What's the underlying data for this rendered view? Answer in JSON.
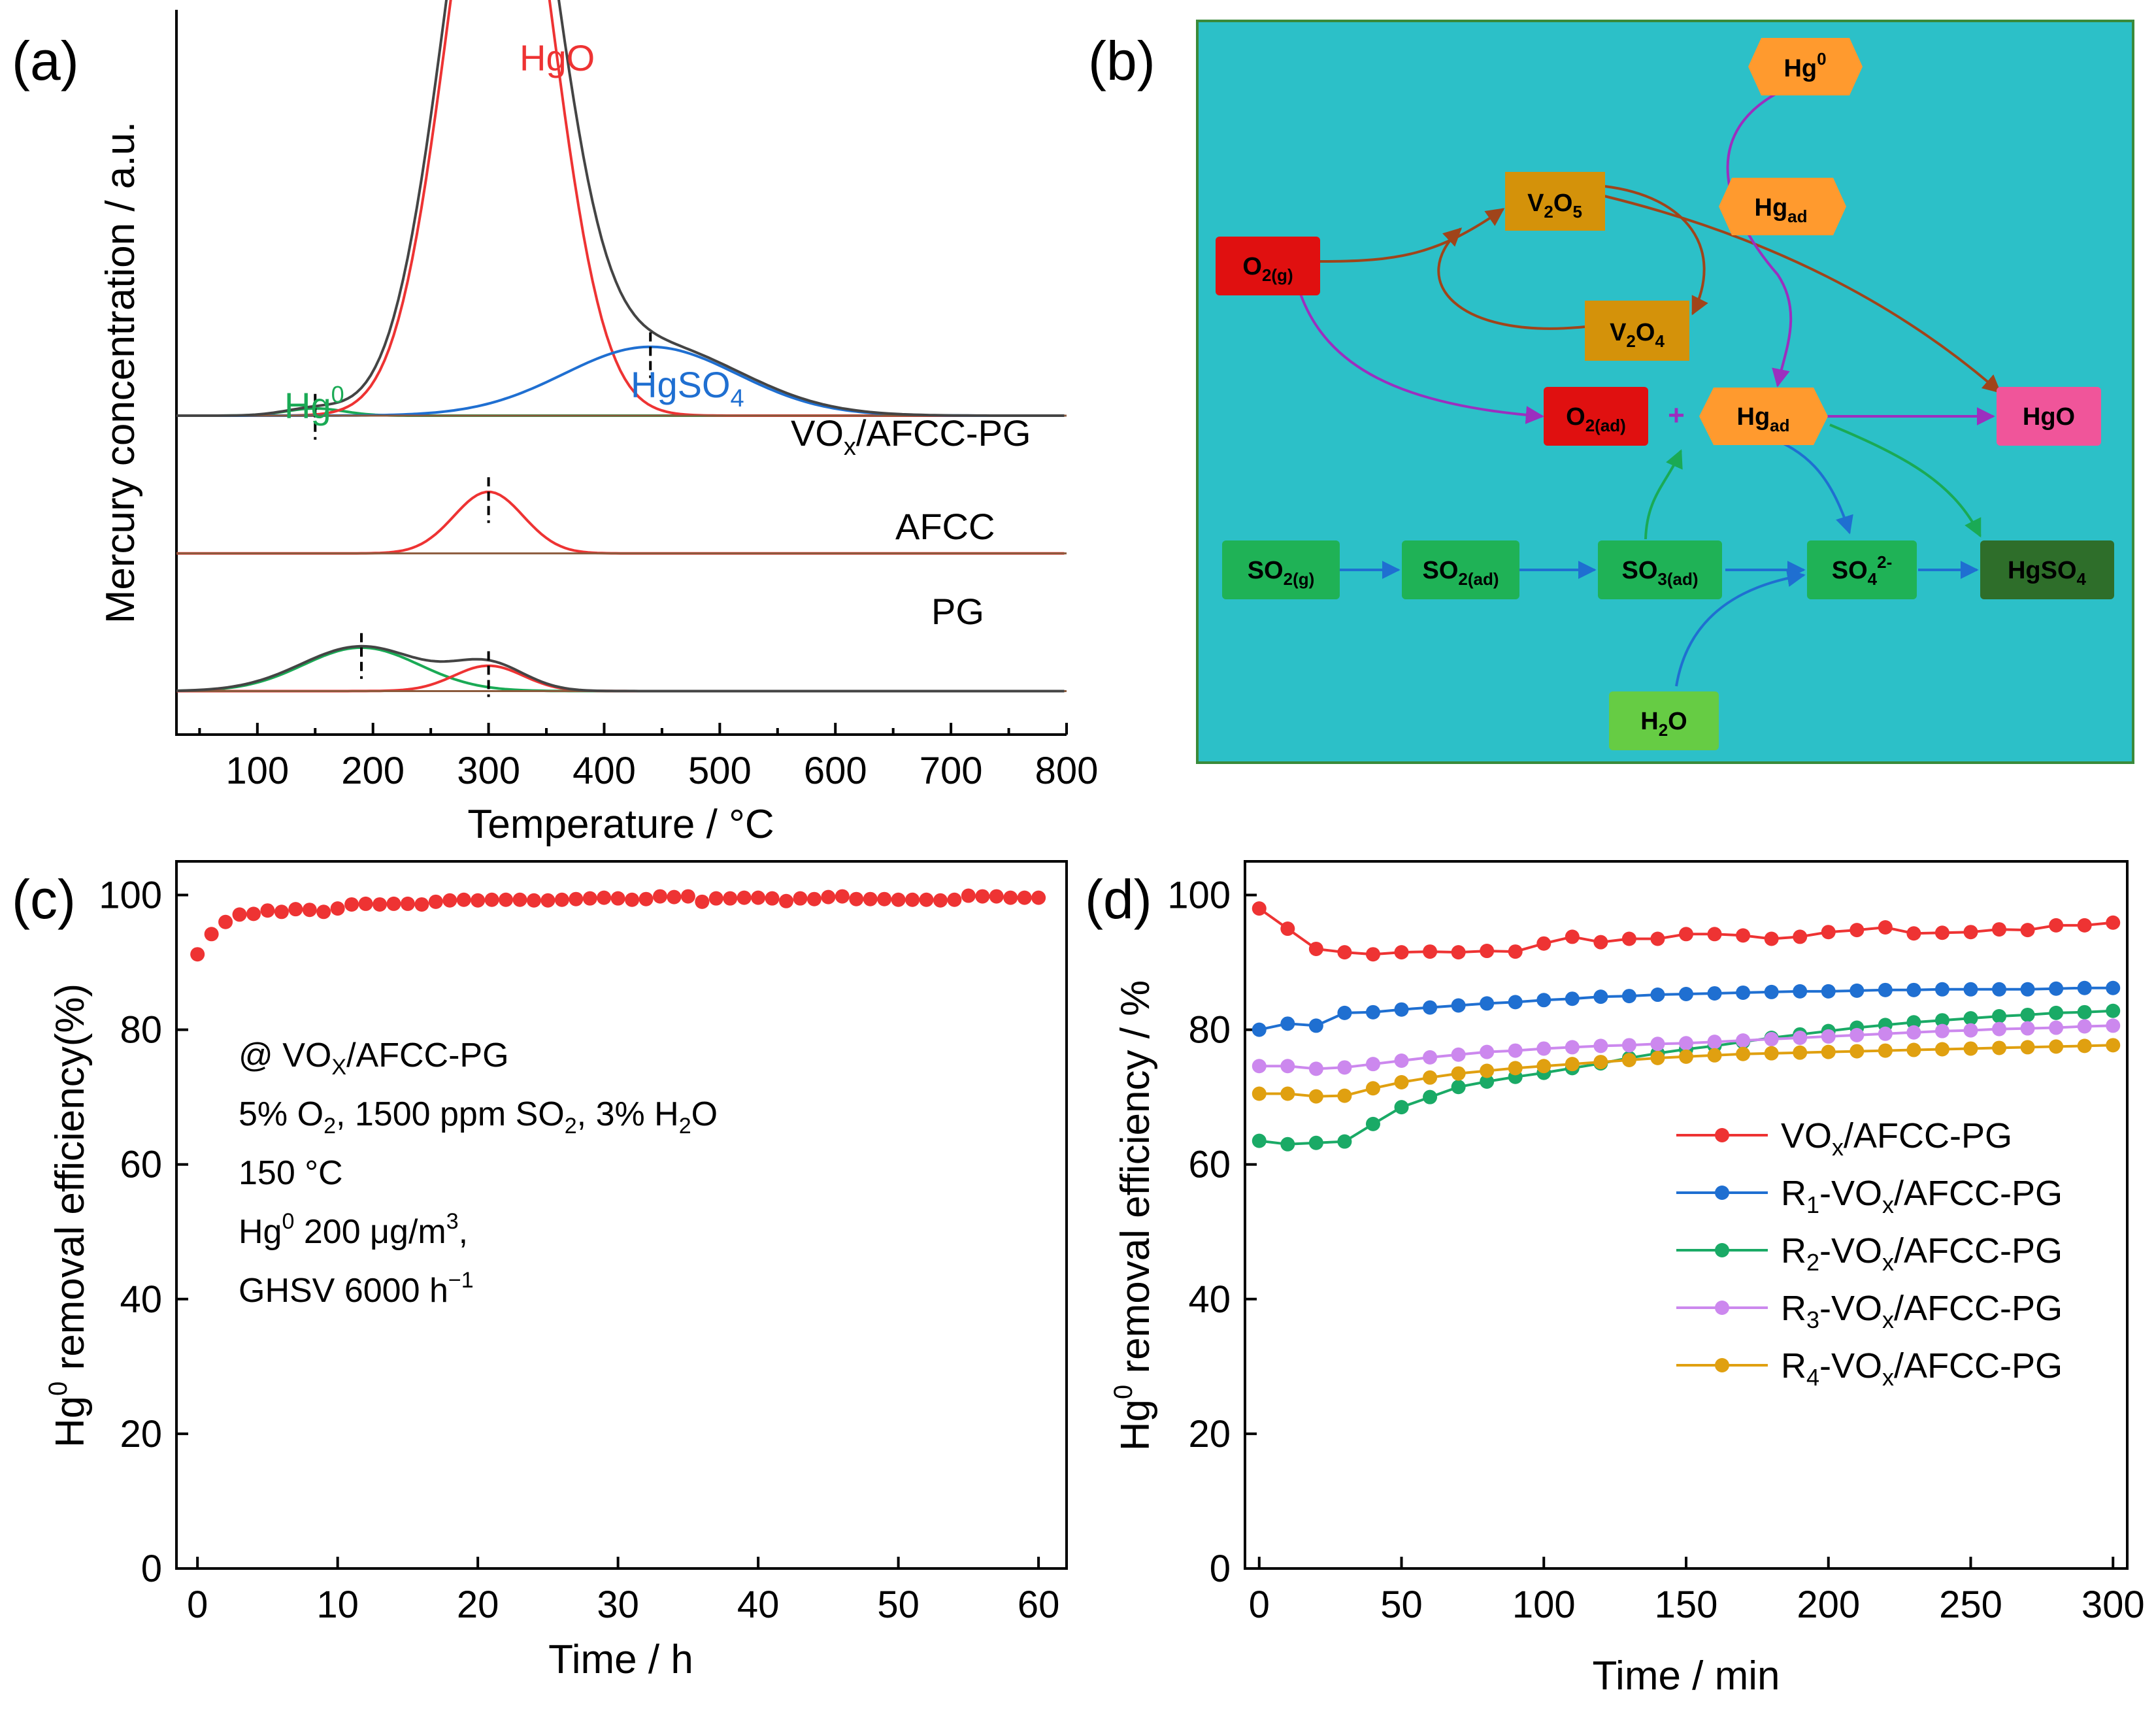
{
  "panels": {
    "a": "(a)",
    "b": "(b)",
    "c": "(c)",
    "d": "(d)"
  },
  "chart_data": [
    {
      "id": "a",
      "type": "line",
      "title": "",
      "xlabel": "Temperature / °C",
      "ylabel": "Mercury concentration / a.u.",
      "xlim": [
        30,
        800
      ],
      "xticks": [
        100,
        200,
        300,
        400,
        500,
        600,
        700,
        800
      ],
      "xtick_labels": [
        "100",
        "200",
        "300",
        "400",
        "500",
        "600",
        "700",
        "800"
      ],
      "traces": [
        {
          "label": "VOx/AFCC-PG",
          "label_main": "VO",
          "label_sub": "x",
          "label_tail": "/AFCC-PG",
          "offset": 0.44,
          "peaks": [
            {
              "name": "Hg",
              "name_sup": "0",
              "center": 150,
              "height": 0.01,
              "color": "#1aaa55"
            },
            {
              "name": "HgO",
              "name_sup": "",
              "center": 310,
              "height": 0.9,
              "color": "#ee3333"
            },
            {
              "name": "HgSO",
              "name_sub": "4",
              "center": 440,
              "height": 0.095,
              "color": "#1f6fd1"
            }
          ]
        },
        {
          "label": "AFCC",
          "offset": 0.25,
          "peaks": [
            {
              "name": "",
              "center": 300,
              "height": 0.085,
              "color": "#ee3333"
            }
          ]
        },
        {
          "label": "PG",
          "offset": 0.06,
          "peaks": [
            {
              "name": "",
              "center": 190,
              "height": 0.06,
              "color": "#1aaa55"
            },
            {
              "name": "",
              "center": 300,
              "height": 0.035,
              "color": "#ee3333"
            }
          ]
        }
      ]
    },
    {
      "id": "c",
      "type": "scatter",
      "xlabel": "Time / h",
      "ylabel_main": "Hg",
      "ylabel_sup": "0",
      "ylabel_tail": " removal efficiency(%)",
      "xlim": [
        -1.5,
        62
      ],
      "ylim": [
        0,
        105
      ],
      "xticks": [
        0,
        10,
        20,
        30,
        40,
        50,
        60
      ],
      "yticks": [
        0,
        20,
        40,
        60,
        80,
        100
      ],
      "color": "#ee3333",
      "x": [
        0,
        1,
        2,
        3,
        4,
        5,
        6,
        7,
        8,
        9,
        10,
        11,
        12,
        13,
        14,
        15,
        16,
        17,
        18,
        19,
        20,
        21,
        22,
        23,
        24,
        25,
        26,
        27,
        28,
        29,
        30,
        31,
        32,
        33,
        34,
        35,
        36,
        37,
        38,
        39,
        40,
        41,
        42,
        43,
        44,
        45,
        46,
        47,
        48,
        49,
        50,
        51,
        52,
        53,
        54,
        55,
        56,
        57,
        58,
        59,
        60
      ],
      "y": [
        91.2,
        94.2,
        96.0,
        97.1,
        97.2,
        97.7,
        97.5,
        97.9,
        97.8,
        97.5,
        98.0,
        98.6,
        98.7,
        98.6,
        98.7,
        98.7,
        98.6,
        99.0,
        99.2,
        99.3,
        99.2,
        99.3,
        99.3,
        99.3,
        99.2,
        99.2,
        99.3,
        99.4,
        99.5,
        99.6,
        99.5,
        99.3,
        99.4,
        99.8,
        99.7,
        99.8,
        99.0,
        99.5,
        99.5,
        99.6,
        99.6,
        99.5,
        99.1,
        99.5,
        99.4,
        99.7,
        99.8,
        99.4,
        99.4,
        99.4,
        99.3,
        99.3,
        99.3,
        99.2,
        99.3,
        99.9,
        99.8,
        99.8,
        99.6,
        99.6,
        99.6
      ],
      "notes": [
        {
          "main": "@ VO",
          "sub": "X",
          "tail": "/AFCC-PG"
        },
        {
          "main": "5% O",
          "sub": "2",
          "tail": ", 1500 ppm SO",
          "sub2": "2",
          "tail2": ", 3% H",
          "sub3": "2",
          "tail3": "O"
        },
        {
          "main": "150 °C"
        },
        {
          "main": "Hg",
          "sup": "0",
          "tail": " 200 μg/m",
          "sup2": "3",
          "tail2": ","
        },
        {
          "main": "GHSV 6000 h",
          "sup": "−1"
        }
      ]
    },
    {
      "id": "d",
      "type": "line",
      "xlabel": "Time / min",
      "ylabel_main": "Hg",
      "ylabel_sup": "0",
      "ylabel_tail": " removal efficiency / %",
      "xlim": [
        -5,
        305
      ],
      "ylim": [
        0,
        105
      ],
      "xticks": [
        0,
        50,
        100,
        150,
        200,
        250,
        300
      ],
      "yticks": [
        0,
        20,
        40,
        60,
        80,
        100
      ],
      "x": [
        0,
        10,
        20,
        30,
        40,
        50,
        60,
        70,
        80,
        90,
        100,
        110,
        120,
        130,
        140,
        150,
        160,
        170,
        180,
        190,
        200,
        210,
        220,
        230,
        240,
        250,
        260,
        270,
        280,
        290,
        300
      ],
      "series": [
        {
          "name": "VOx/AFCC-PG",
          "lbl_pre": "",
          "lbl_sub1": "",
          "lbl_mid": "VO",
          "lbl_sub2": "x",
          "lbl_tail": "/AFCC-PG",
          "color": "#ee3333",
          "values": [
            98.0,
            95.0,
            92.0,
            91.5,
            91.2,
            91.5,
            91.6,
            91.5,
            91.7,
            91.6,
            92.8,
            93.8,
            93.0,
            93.5,
            93.5,
            94.2,
            94.2,
            94.0,
            93.5,
            93.8,
            94.5,
            94.8,
            95.2,
            94.3,
            94.4,
            94.5,
            94.9,
            94.8,
            95.5,
            95.5,
            95.9
          ]
        },
        {
          "name": "R1-VOx/AFCC-PG",
          "lbl_pre": "R",
          "lbl_sub1": "1",
          "lbl_mid": "-VO",
          "lbl_sub2": "x",
          "lbl_tail": "/AFCC-PG",
          "color": "#1f6fd1",
          "values": [
            80.0,
            80.9,
            80.6,
            82.5,
            82.6,
            83.0,
            83.3,
            83.6,
            83.9,
            84.1,
            84.4,
            84.6,
            84.9,
            85.0,
            85.2,
            85.3,
            85.4,
            85.5,
            85.6,
            85.7,
            85.7,
            85.8,
            85.9,
            85.9,
            86.0,
            86.0,
            86.0,
            86.0,
            86.1,
            86.2,
            86.2
          ]
        },
        {
          "name": "R2-VOx/AFCC-PG",
          "lbl_pre": "R",
          "lbl_sub1": "2",
          "lbl_mid": "-VO",
          "lbl_sub2": "x",
          "lbl_tail": "/AFCC-PG",
          "color": "#1aaa66",
          "values": [
            63.5,
            63.0,
            63.2,
            63.4,
            66.0,
            68.5,
            70.0,
            71.5,
            72.3,
            73.0,
            73.6,
            74.3,
            75.0,
            75.8,
            76.5,
            77.1,
            77.6,
            78.2,
            78.8,
            79.3,
            79.8,
            80.3,
            80.7,
            81.1,
            81.4,
            81.7,
            82.0,
            82.2,
            82.5,
            82.6,
            82.8
          ]
        },
        {
          "name": "R3-VOx/AFCC-PG",
          "lbl_pre": "R",
          "lbl_sub1": "3",
          "lbl_mid": "-VO",
          "lbl_sub2": "x",
          "lbl_tail": "/AFCC-PG",
          "color": "#cc88ee",
          "values": [
            74.6,
            74.6,
            74.2,
            74.4,
            74.9,
            75.4,
            75.9,
            76.3,
            76.7,
            76.9,
            77.2,
            77.4,
            77.6,
            77.7,
            77.9,
            78.0,
            78.2,
            78.4,
            78.6,
            78.8,
            79.0,
            79.2,
            79.4,
            79.6,
            79.8,
            79.9,
            80.1,
            80.2,
            80.3,
            80.5,
            80.6
          ]
        },
        {
          "name": "R4-VOx/AFCC-PG",
          "lbl_pre": "R",
          "lbl_sub1": "4",
          "lbl_mid": "-VO",
          "lbl_sub2": "x",
          "lbl_tail": "/AFCC-PG",
          "color": "#e0a010",
          "values": [
            70.5,
            70.5,
            70.1,
            70.2,
            71.3,
            72.2,
            72.9,
            73.5,
            73.9,
            74.3,
            74.6,
            74.9,
            75.2,
            75.5,
            75.8,
            76.0,
            76.2,
            76.4,
            76.5,
            76.6,
            76.7,
            76.8,
            76.9,
            77.0,
            77.1,
            77.2,
            77.3,
            77.4,
            77.5,
            77.6,
            77.7
          ]
        }
      ]
    }
  ],
  "diagram": {
    "nodes": {
      "hg0": {
        "main": "Hg",
        "sup": "0",
        "color": "#ff9a2e"
      },
      "v2o5": {
        "main": "V",
        "sub": "2",
        "mid": "O",
        "sub2": "5",
        "color": "#d4920a"
      },
      "hgad_top": {
        "main": "Hg",
        "sub": "ad",
        "color": "#ff9a2e"
      },
      "o2g": {
        "main": "O",
        "sub": "2(g)",
        "color": "#e01010"
      },
      "v2o4": {
        "main": "V",
        "sub": "2",
        "mid": "O",
        "sub2": "4",
        "color": "#d4920a"
      },
      "o2ad": {
        "main": "O",
        "sub": "2(ad)",
        "color": "#e01010"
      },
      "hgad": {
        "main": "Hg",
        "sub": "ad",
        "color": "#ff9a2e"
      },
      "hgo": {
        "main": "HgO",
        "color": "#f0559a"
      },
      "so2g": {
        "main": "SO",
        "sub": "2(g)",
        "color": "#1fb256"
      },
      "so2ad": {
        "main": "SO",
        "sub": "2(ad)",
        "color": "#1fb256"
      },
      "so3ad": {
        "main": "SO",
        "sub": "3(ad)",
        "color": "#1fb256"
      },
      "so4": {
        "main": "SO",
        "sub": "4",
        "sup": "2-",
        "color": "#1fb256"
      },
      "hgso4": {
        "main": "HgSO",
        "sub": "4",
        "color": "#2e6e2a"
      },
      "h2o": {
        "main": "H",
        "sub": "2",
        "mid": "O",
        "color": "#66cc44"
      }
    },
    "plus": "+",
    "background": "#2cc0c8",
    "border": "#3a8a3a"
  }
}
